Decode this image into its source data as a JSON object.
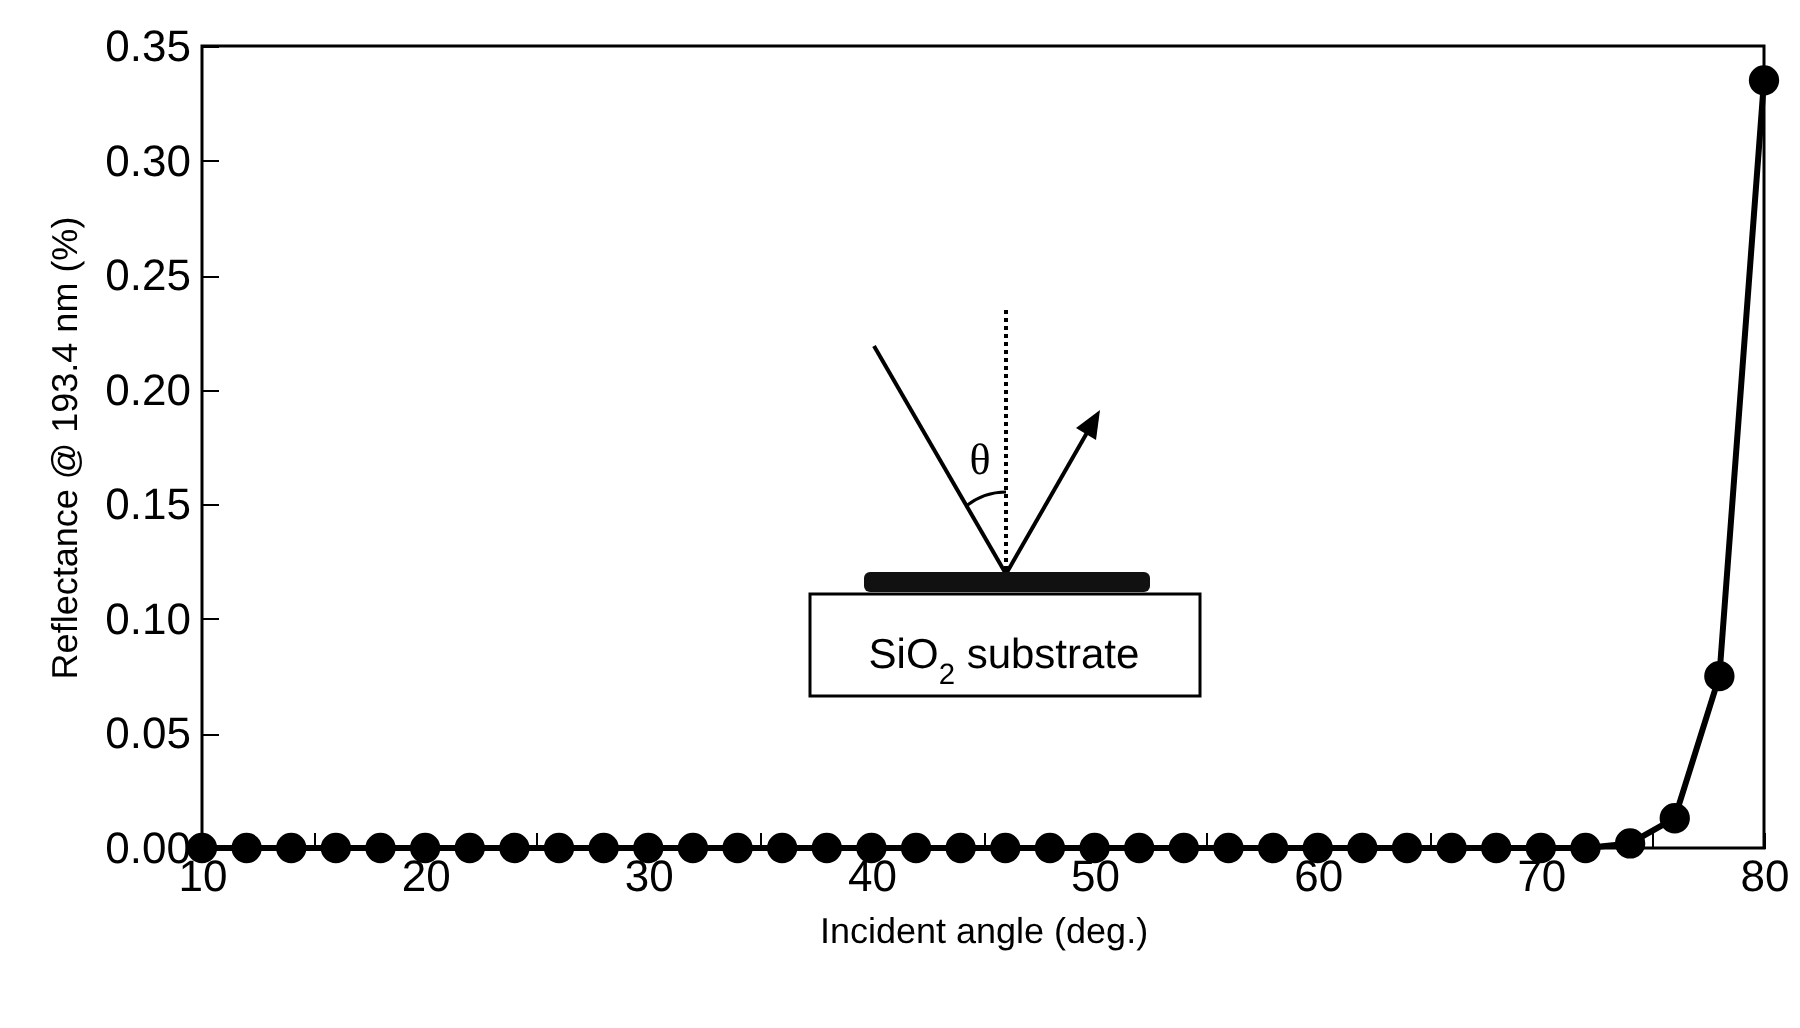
{
  "chart_data": {
    "type": "line",
    "xlabel": "Incident angle (deg.)",
    "ylabel": "Reflectance @ 193.4 nm (%)",
    "x": [
      10,
      12,
      14,
      16,
      18,
      20,
      22,
      24,
      26,
      28,
      30,
      32,
      34,
      36,
      38,
      40,
      42,
      44,
      46,
      48,
      50,
      52,
      54,
      56,
      58,
      60,
      62,
      64,
      66,
      68,
      70,
      72,
      74,
      76,
      78,
      80
    ],
    "series": [
      {
        "color": "#000000",
        "values": [
          0,
          0,
          0,
          0,
          0,
          0,
          0,
          0,
          0,
          0,
          0,
          0,
          0,
          0,
          0,
          0,
          0,
          0,
          0,
          0,
          0,
          0,
          0,
          0,
          0,
          0,
          0,
          0,
          0,
          0,
          0,
          0,
          0.002,
          0.013,
          0.075,
          0.335
        ]
      }
    ],
    "xlim": [
      10,
      80
    ],
    "xticks": [
      10,
      {
        "value": 15,
        "label": null
      },
      20,
      {
        "value": 25,
        "label": null
      },
      30,
      {
        "value": 35,
        "label": null
      },
      40,
      {
        "value": 45,
        "label": null
      },
      50,
      {
        "value": 55,
        "label": null
      },
      60,
      {
        "value": 65,
        "label": null
      },
      70,
      {
        "value": 75,
        "label": null
      },
      80
    ],
    "ylim": [
      0,
      0.35
    ],
    "yticks": [
      {
        "value": 0,
        "label": "0.00"
      },
      {
        "value": 0.05,
        "label": "0.05"
      },
      {
        "value": 0.1,
        "label": "0.10"
      },
      {
        "value": 0.15,
        "label": "0.15"
      },
      {
        "value": 0.2,
        "label": "0.20"
      },
      {
        "value": 0.25,
        "label": "0.25"
      },
      {
        "value": 0.3,
        "label": "0.30"
      },
      {
        "value": 0.35,
        "label": "0.35"
      }
    ],
    "marker": "circle",
    "line_style": "solid",
    "grid": false,
    "annotations": [
      "θ",
      "SiO$_{2}$ substrate"
    ]
  }
}
